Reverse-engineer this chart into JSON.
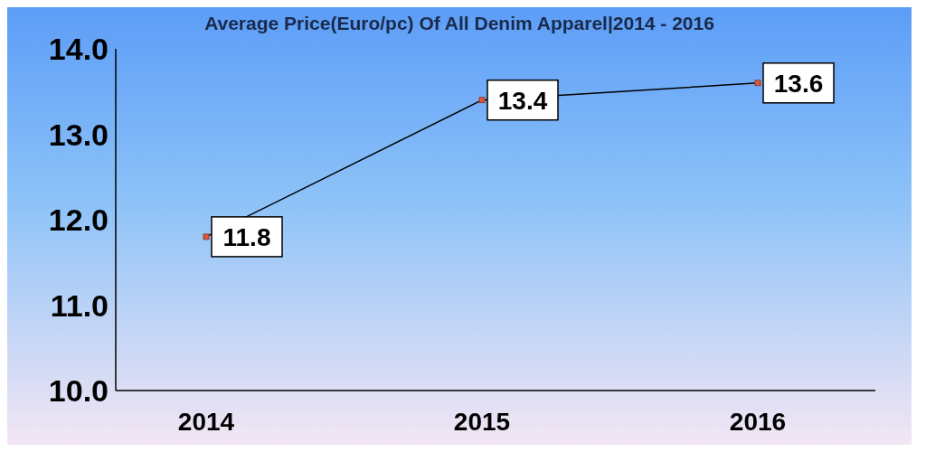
{
  "chart_data": {
    "type": "line",
    "title": "Average Price(Euro/pc) Of All Denim Apparel|2014 - 2016",
    "categories": [
      "2014",
      "2015",
      "2016"
    ],
    "series": [
      {
        "color": "#000000",
        "values": [
          11.8,
          13.4,
          13.6
        ]
      }
    ],
    "ylim": [
      10,
      14
    ],
    "yticks": [
      {
        "value": 10,
        "label": "10.0"
      },
      {
        "value": 11,
        "label": "11.0"
      },
      {
        "value": 12,
        "label": "12.0"
      },
      {
        "value": 13,
        "label": "13.0"
      },
      {
        "value": 14,
        "label": "14.0"
      }
    ],
    "grid": false,
    "legend": false,
    "marker": "square",
    "line_style": "solid",
    "data_labels": true
  }
}
